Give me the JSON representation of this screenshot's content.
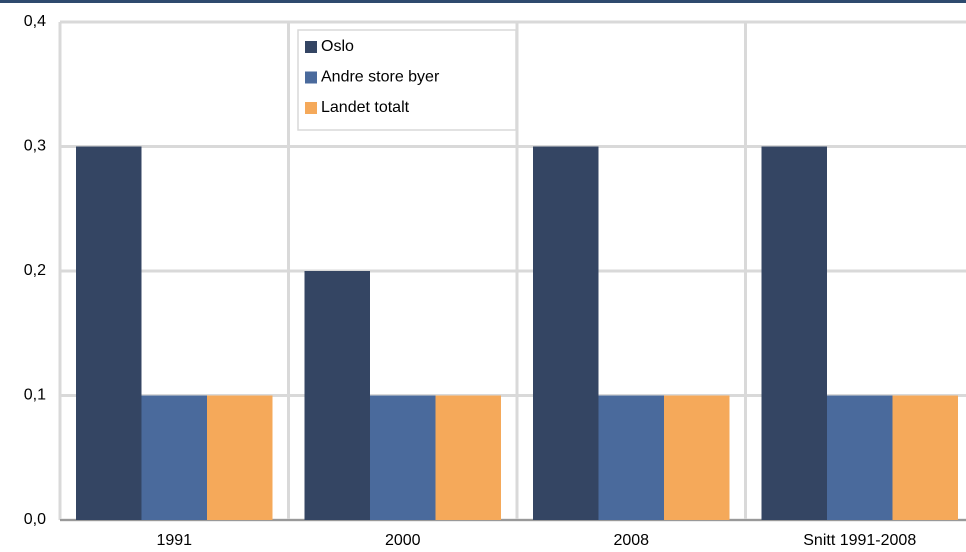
{
  "chart_data": {
    "type": "bar",
    "categories": [
      "1991",
      "2000",
      "2008",
      "Snitt 1991-2008"
    ],
    "series": [
      {
        "name": "Oslo",
        "color": "#344563",
        "values": [
          0.3,
          0.2,
          0.3,
          0.3
        ]
      },
      {
        "name": "Andre store byer",
        "color": "#4a6a9c",
        "values": [
          0.1,
          0.1,
          0.1,
          0.1
        ]
      },
      {
        "name": "Landet totalt",
        "color": "#f5a95a",
        "values": [
          0.1,
          0.1,
          0.1,
          0.1
        ]
      }
    ],
    "ylim": [
      0,
      0.4
    ],
    "yticks": [
      {
        "value": 0,
        "label": "0,0"
      },
      {
        "value": 0.1,
        "label": "0,1"
      },
      {
        "value": 0.2,
        "label": "0,2"
      },
      {
        "value": 0.3,
        "label": "0,3"
      },
      {
        "value": 0.4,
        "label": "0,4"
      }
    ],
    "grid": true
  }
}
